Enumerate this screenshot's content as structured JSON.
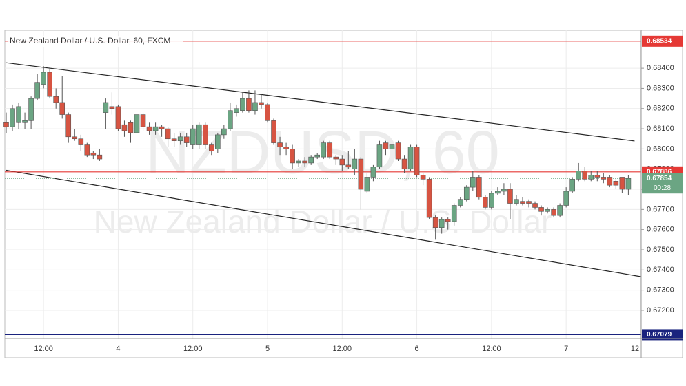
{
  "chart_data": {
    "type": "candlestick",
    "title": "New Zealand Dollar / U.S. Dollar, 60, FXCM",
    "watermark": "NZDUSD, 60",
    "watermark_subtitle": "New Zealand Dollar / U.S. Dollar",
    "up_color": "#6ba583",
    "down_color": "#d75442",
    "categories": [
      null,
      null,
      null,
      null,
      null,
      null,
      "12:00",
      null,
      null,
      null,
      null,
      null,
      null,
      null,
      null,
      null,
      null,
      null,
      "4",
      null,
      null,
      null,
      null,
      null,
      null,
      null,
      null,
      null,
      null,
      null,
      "12:00",
      null,
      null,
      null,
      null,
      null,
      null,
      null,
      null,
      null,
      null,
      null,
      "5",
      null,
      null,
      null,
      null,
      null,
      null,
      null,
      null,
      null,
      null,
      null,
      "12:00",
      null,
      null,
      null,
      null,
      null,
      null,
      null,
      null,
      null,
      null,
      null,
      "6",
      null,
      null,
      null,
      null,
      null,
      null,
      null,
      null,
      null,
      null,
      null,
      "12:00",
      null,
      null,
      null,
      null,
      null,
      null,
      null,
      null,
      null,
      null,
      null,
      "7",
      null,
      null,
      null,
      null,
      null,
      null,
      null,
      null,
      null,
      null,
      null,
      "12"
    ],
    "open": [
      0.6813,
      0.6811,
      0.6813,
      0.6813,
      0.6814,
      0.6825,
      0.6832,
      0.6838,
      0.6826,
      0.6823,
      0.6817,
      0.6806,
      0.6805,
      0.6802,
      0.6798,
      0.6797,
      0.6818,
      0.6821,
      0.6821,
      0.6812,
      0.6813,
      0.6808,
      0.6817,
      0.6811,
      0.6809,
      0.6811,
      0.681,
      0.6805,
      0.6804,
      0.6806,
      0.6802,
      0.6802,
      0.6812,
      0.6802,
      0.68,
      0.6807,
      0.681,
      0.6818,
      0.6819,
      0.6825,
      0.6819,
      0.6823,
      0.6822,
      0.6814,
      0.6803,
      0.6801,
      0.68,
      0.6793,
      0.6794,
      0.6793,
      0.6796,
      0.6796,
      0.6803,
      0.6796,
      0.6795,
      0.6792,
      0.679,
      0.6795,
      0.6779,
      0.6786,
      0.6791,
      0.6803,
      0.68,
      0.6803,
      0.6795,
      0.679,
      0.6801,
      0.6787,
      0.6785,
      0.6766,
      0.6761,
      0.6765,
      0.6764,
      0.6772,
      0.6775,
      0.6781,
      0.6786,
      0.6776,
      0.6771,
      0.6778,
      0.6779,
      0.678,
      0.6773,
      0.6774,
      0.6774,
      0.6773,
      0.6771,
      0.6769,
      0.677,
      0.6767,
      0.6772,
      0.6779,
      0.6785,
      0.6789,
      0.6785,
      0.6787,
      0.6786,
      0.6786,
      0.6784,
      0.6786,
      0.678,
      null,
      null
    ],
    "high": [
      0.6818,
      0.6822,
      0.6823,
      0.6818,
      0.6826,
      0.6837,
      0.6841,
      0.684,
      0.683,
      0.6836,
      0.6818,
      0.681,
      0.6807,
      0.6803,
      0.6799,
      0.68,
      0.6825,
      0.6828,
      0.6822,
      0.6814,
      0.6814,
      0.6818,
      0.6818,
      0.6813,
      0.6813,
      0.6812,
      0.6811,
      0.6808,
      0.6808,
      0.6808,
      0.6812,
      0.6813,
      0.6813,
      0.6803,
      0.6808,
      0.6812,
      0.6823,
      0.6822,
      0.6828,
      0.6829,
      0.6829,
      0.6827,
      0.6823,
      0.6815,
      0.6806,
      0.6803,
      0.6802,
      0.6795,
      0.6796,
      0.6797,
      0.6798,
      0.6804,
      0.6804,
      0.6797,
      0.6797,
      0.6799,
      0.68,
      0.6796,
      0.6788,
      0.6792,
      0.6804,
      0.6804,
      0.6804,
      0.6804,
      0.6797,
      0.6802,
      0.6802,
      0.6788,
      0.6786,
      0.6767,
      0.6766,
      0.6766,
      0.6773,
      0.6776,
      0.6782,
      0.6789,
      0.6787,
      0.6777,
      0.6779,
      0.6781,
      0.6783,
      0.6783,
      0.6777,
      0.6776,
      0.6775,
      0.6774,
      0.6772,
      0.6771,
      0.6771,
      0.6773,
      0.6781,
      0.6786,
      0.6793,
      0.6791,
      0.6789,
      0.6789,
      0.6788,
      0.6787,
      0.6785,
      0.6786,
      0.6787,
      null,
      null
    ],
    "low": [
      0.6808,
      0.6809,
      0.681,
      0.681,
      0.681,
      0.6824,
      0.683,
      0.6825,
      0.682,
      0.6815,
      0.6803,
      0.6804,
      0.6799,
      0.6796,
      0.6795,
      0.6794,
      0.681,
      0.6817,
      0.6809,
      0.6806,
      0.6803,
      0.6806,
      0.6809,
      0.6807,
      0.6807,
      0.6806,
      0.6801,
      0.6801,
      0.6802,
      0.6801,
      0.68,
      0.68,
      0.68,
      0.6797,
      0.6798,
      0.6805,
      0.6809,
      0.6816,
      0.6818,
      0.6818,
      0.6817,
      0.682,
      0.6813,
      0.6802,
      0.6797,
      0.6797,
      0.679,
      0.6791,
      0.6791,
      0.6792,
      0.6795,
      0.6795,
      0.6795,
      0.6792,
      0.6789,
      0.679,
      0.6787,
      0.677,
      0.6778,
      0.6784,
      0.679,
      0.6797,
      0.6798,
      0.6794,
      0.6788,
      0.6789,
      0.6786,
      0.6782,
      0.6765,
      0.6755,
      0.6758,
      0.676,
      0.6762,
      0.6771,
      0.6774,
      0.6779,
      0.6775,
      0.677,
      0.677,
      0.6777,
      0.6777,
      0.6765,
      0.6772,
      0.6772,
      0.6771,
      0.677,
      0.6767,
      0.6768,
      0.6766,
      0.6766,
      0.6771,
      0.6778,
      0.6784,
      0.6784,
      0.6784,
      0.6784,
      0.6783,
      0.6781,
      0.678,
      0.6778,
      0.6777,
      null,
      null
    ],
    "close": [
      0.6811,
      0.682,
      0.6821,
      0.6814,
      0.6825,
      0.6833,
      0.6838,
      0.6826,
      0.6823,
      0.6817,
      0.6806,
      0.6805,
      0.6802,
      0.6797,
      0.6797,
      0.6795,
      0.6823,
      0.682,
      0.681,
      0.6809,
      0.6808,
      0.6817,
      0.6811,
      0.6809,
      0.6811,
      0.681,
      0.6805,
      0.6804,
      0.6806,
      0.6803,
      0.681,
      0.6812,
      0.6802,
      0.6799,
      0.6807,
      0.681,
      0.6819,
      0.682,
      0.6825,
      0.6819,
      0.6823,
      0.6822,
      0.6814,
      0.6803,
      0.6801,
      0.68,
      0.6793,
      0.6794,
      0.6793,
      0.6796,
      0.6797,
      0.6803,
      0.6796,
      0.6795,
      0.6792,
      0.6791,
      0.6795,
      0.678,
      0.6786,
      0.6791,
      0.6802,
      0.68,
      0.6802,
      0.6795,
      0.679,
      0.6801,
      0.6787,
      0.6785,
      0.6766,
      0.6761,
      0.6765,
      0.6764,
      0.6772,
      0.6775,
      0.6781,
      0.6786,
      0.6776,
      0.6771,
      0.6778,
      0.6779,
      0.678,
      0.6773,
      0.6775,
      0.6773,
      0.6773,
      0.6771,
      0.6769,
      0.677,
      0.6767,
      0.6772,
      0.6779,
      0.6785,
      0.6789,
      0.6785,
      0.6787,
      0.6786,
      0.6785,
      0.6782,
      0.6782,
      0.678,
      0.67854,
      null,
      null
    ],
    "ylim": [
      0.6706,
      0.68588
    ],
    "yticks": [
      {
        "value": 0.672,
        "label": "0.67200"
      },
      {
        "value": 0.673,
        "label": "0.67300"
      },
      {
        "value": 0.674,
        "label": "0.67400"
      },
      {
        "value": 0.675,
        "label": "0.67500"
      },
      {
        "value": 0.676,
        "label": "0.67600"
      },
      {
        "value": 0.677,
        "label": "0.67700"
      },
      {
        "value": 0.678,
        "label": "0.67800"
      },
      {
        "value": 0.679,
        "label": "0.67900"
      },
      {
        "value": 0.68,
        "label": "0.68000"
      },
      {
        "value": 0.681,
        "label": "0.68100"
      },
      {
        "value": 0.682,
        "label": "0.68200"
      },
      {
        "value": 0.683,
        "label": "0.68300"
      },
      {
        "value": 0.684,
        "label": "0.68400"
      }
    ],
    "grid": true,
    "horizontal_lines": [
      {
        "value": 0.68534,
        "color": "#e53935"
      },
      {
        "value": 0.67886,
        "color": "#e53935"
      },
      {
        "value": 0.67079,
        "color": "#1a237e"
      }
    ],
    "last_price": 0.67854,
    "countdown": "00:28",
    "trend_lines": [
      {
        "start": [
          0,
          0.68427
        ],
        "end": [
          101,
          0.68039
        ]
      },
      {
        "start": [
          0,
          0.67894
        ],
        "end": [
          102,
          0.67367
        ]
      }
    ]
  }
}
